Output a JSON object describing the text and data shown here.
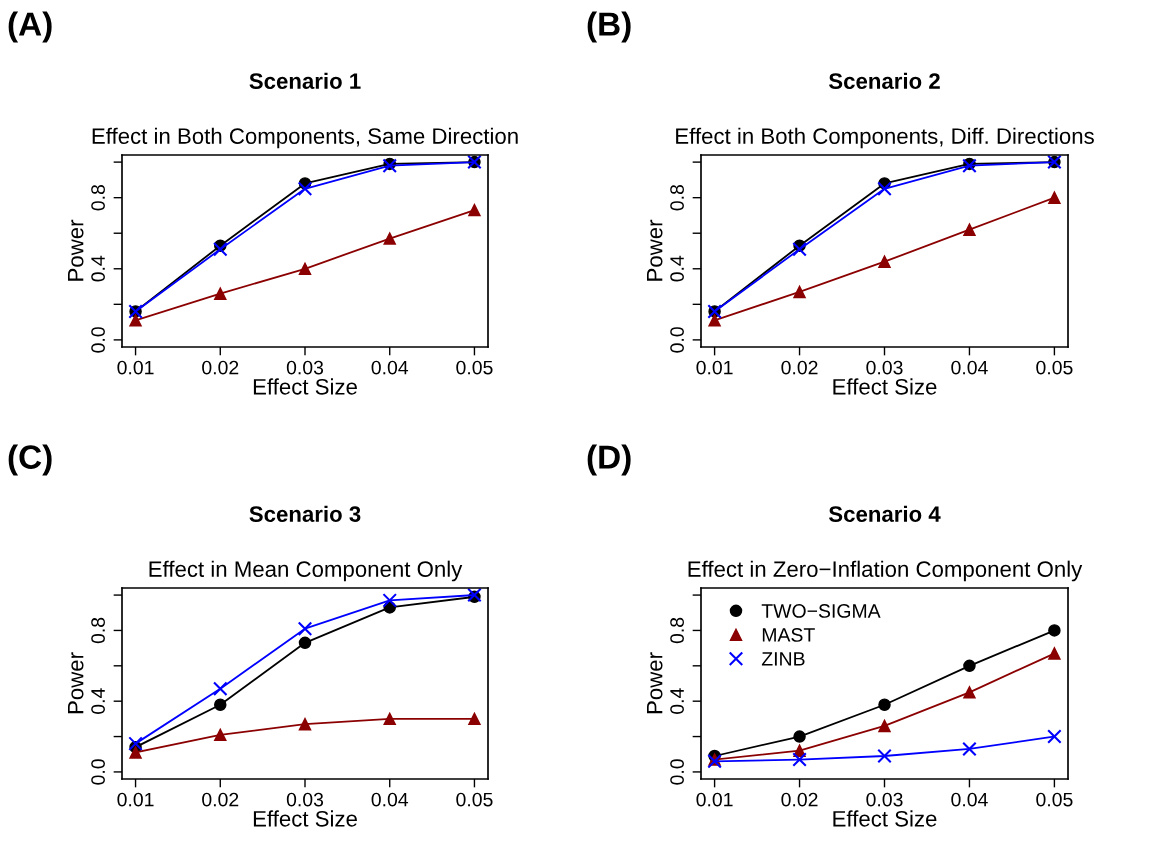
{
  "chart_data": [
    {
      "type": "line",
      "title": "Scenario 1",
      "subtitle": "Effect in Both Components, Same Direction",
      "annotations": [
        "(A)"
      ],
      "xlabel": "Effect Size",
      "ylabel": "Power",
      "x": [
        0.01,
        0.02,
        0.03,
        0.04,
        0.05
      ],
      "xlim": [
        0.0084,
        0.0516
      ],
      "ylim": [
        -0.04,
        1.04
      ],
      "xticks": [
        0.01,
        0.02,
        0.03,
        0.04,
        0.05
      ],
      "yticks": [
        {
          "value": 0,
          "label": "0.0"
        },
        {
          "value": 0.2,
          "label": null
        },
        {
          "value": 0.4,
          "label": "0.4"
        },
        {
          "value": 0.6,
          "label": null
        },
        {
          "value": 0.8,
          "label": "0.8"
        },
        {
          "value": 1,
          "label": null
        }
      ],
      "grid": false,
      "legend": false,
      "line_style": "solid",
      "series": [
        {
          "color": "#000000",
          "marker": "circle",
          "values": [
            0.16,
            0.53,
            0.88,
            0.99,
            1.0
          ]
        },
        {
          "color": "#8b0000",
          "marker": "triangle",
          "values": [
            0.11,
            0.26,
            0.4,
            0.57,
            0.73
          ]
        },
        {
          "color": "#0000ff",
          "marker": "cross",
          "values": [
            0.16,
            0.51,
            0.85,
            0.98,
            1.0
          ]
        }
      ]
    },
    {
      "type": "line",
      "title": "Scenario 2",
      "subtitle": "Effect in Both Components, Diff. Directions",
      "annotations": [
        "(B)"
      ],
      "xlabel": "Effect Size",
      "ylabel": "Power",
      "x": [
        0.01,
        0.02,
        0.03,
        0.04,
        0.05
      ],
      "xlim": [
        0.0084,
        0.0516
      ],
      "ylim": [
        -0.04,
        1.04
      ],
      "xticks": [
        0.01,
        0.02,
        0.03,
        0.04,
        0.05
      ],
      "yticks": [
        {
          "value": 0,
          "label": "0.0"
        },
        {
          "value": 0.2,
          "label": null
        },
        {
          "value": 0.4,
          "label": "0.4"
        },
        {
          "value": 0.6,
          "label": null
        },
        {
          "value": 0.8,
          "label": "0.8"
        },
        {
          "value": 1,
          "label": null
        }
      ],
      "grid": false,
      "legend": false,
      "line_style": "solid",
      "series": [
        {
          "color": "#000000",
          "marker": "circle",
          "values": [
            0.16,
            0.53,
            0.88,
            0.99,
            1.0
          ]
        },
        {
          "color": "#8b0000",
          "marker": "triangle",
          "values": [
            0.11,
            0.27,
            0.44,
            0.62,
            0.8
          ]
        },
        {
          "color": "#0000ff",
          "marker": "cross",
          "values": [
            0.16,
            0.51,
            0.85,
            0.98,
            1.0
          ]
        }
      ]
    },
    {
      "type": "line",
      "title": "Scenario 3",
      "subtitle": "Effect in Mean Component Only",
      "annotations": [
        "(C)"
      ],
      "xlabel": "Effect Size",
      "ylabel": "Power",
      "x": [
        0.01,
        0.02,
        0.03,
        0.04,
        0.05
      ],
      "xlim": [
        0.0084,
        0.0516
      ],
      "ylim": [
        -0.04,
        1.04
      ],
      "xticks": [
        0.01,
        0.02,
        0.03,
        0.04,
        0.05
      ],
      "yticks": [
        {
          "value": 0,
          "label": "0.0"
        },
        {
          "value": 0.2,
          "label": null
        },
        {
          "value": 0.4,
          "label": "0.4"
        },
        {
          "value": 0.6,
          "label": null
        },
        {
          "value": 0.8,
          "label": "0.8"
        },
        {
          "value": 1,
          "label": null
        }
      ],
      "grid": false,
      "legend": false,
      "line_style": "solid",
      "series": [
        {
          "color": "#000000",
          "marker": "circle",
          "values": [
            0.14,
            0.38,
            0.73,
            0.93,
            0.99
          ]
        },
        {
          "color": "#8b0000",
          "marker": "triangle",
          "values": [
            0.11,
            0.21,
            0.27,
            0.3,
            0.3
          ]
        },
        {
          "color": "#0000ff",
          "marker": "cross",
          "values": [
            0.16,
            0.47,
            0.81,
            0.97,
            1.0
          ]
        }
      ]
    },
    {
      "type": "line",
      "title": "Scenario 4",
      "subtitle": "Effect in Zero−Inflation Component Only",
      "annotations": [
        "(D)"
      ],
      "xlabel": "Effect Size",
      "ylabel": "Power",
      "x": [
        0.01,
        0.02,
        0.03,
        0.04,
        0.05
      ],
      "xlim": [
        0.0084,
        0.0516
      ],
      "ylim": [
        -0.04,
        1.04
      ],
      "xticks": [
        0.01,
        0.02,
        0.03,
        0.04,
        0.05
      ],
      "yticks": [
        {
          "value": 0,
          "label": "0.0"
        },
        {
          "value": 0.2,
          "label": null
        },
        {
          "value": 0.4,
          "label": "0.4"
        },
        {
          "value": 0.6,
          "label": null
        },
        {
          "value": 0.8,
          "label": "0.8"
        },
        {
          "value": 1,
          "label": null
        }
      ],
      "grid": false,
      "legend": "top left",
      "line_style": "solid",
      "series": [
        {
          "name": "TWO−SIGMA",
          "color": "#000000",
          "marker": "circle",
          "values": [
            0.09,
            0.2,
            0.38,
            0.6,
            0.8
          ]
        },
        {
          "name": "MAST",
          "color": "#8b0000",
          "marker": "triangle",
          "values": [
            0.07,
            0.12,
            0.26,
            0.45,
            0.67
          ]
        },
        {
          "name": "ZINB",
          "color": "#0000ff",
          "marker": "cross",
          "values": [
            0.06,
            0.07,
            0.09,
            0.13,
            0.2
          ]
        }
      ]
    }
  ]
}
